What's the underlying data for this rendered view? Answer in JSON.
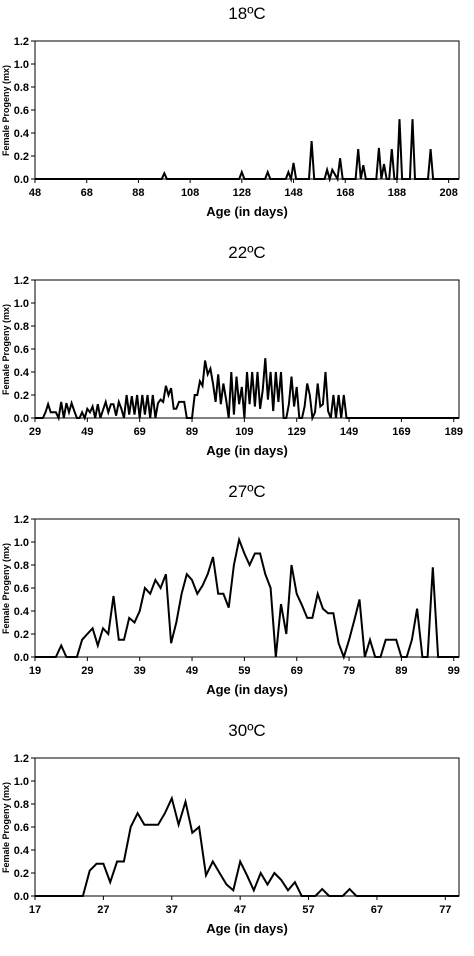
{
  "chart_data": [
    {
      "type": "line",
      "title": "18ºC",
      "xlabel": "Age (in days)",
      "ylabel": "Female Progeny (mx)",
      "xlim": [
        48,
        212
      ],
      "ylim": [
        0,
        1.2
      ],
      "xticks": [
        48,
        68,
        88,
        108,
        128,
        148,
        168,
        188,
        208
      ],
      "yticks": [
        0.0,
        0.2,
        0.4,
        0.6,
        0.8,
        1.0,
        1.2
      ],
      "grid": false,
      "legend": "none",
      "series": [
        {
          "x": [
            48,
            97,
            98,
            99,
            127,
            128,
            129,
            137,
            138,
            139,
            145,
            146,
            147,
            148,
            149,
            150,
            151,
            154,
            155,
            156,
            157,
            160,
            161,
            162,
            163,
            165,
            166,
            167,
            168,
            172,
            173,
            174,
            175,
            176,
            177,
            178,
            180,
            181,
            182,
            183,
            184,
            185,
            186,
            187,
            188,
            189,
            190,
            192,
            193,
            194,
            195,
            196,
            197,
            200,
            201,
            202,
            203,
            212
          ],
          "y": [
            0,
            0,
            0.05,
            0,
            0,
            0.06,
            0,
            0,
            0.06,
            0,
            0,
            0.06,
            0,
            0.14,
            0,
            0,
            0,
            0,
            0.33,
            0,
            0,
            0,
            0.08,
            0,
            0.08,
            0,
            0.18,
            0,
            0,
            0,
            0.26,
            0,
            0.12,
            0,
            0,
            0,
            0,
            0.27,
            0,
            0.13,
            0,
            0,
            0.26,
            0,
            0,
            0.52,
            0,
            0,
            0,
            0.52,
            0,
            0,
            0,
            0,
            0.26,
            0,
            0,
            0
          ]
        }
      ]
    },
    {
      "type": "line",
      "title": "22ºC",
      "xlabel": "Age (in days)",
      "ylabel": "Female Progeny (mx)",
      "xlim": [
        29,
        191
      ],
      "ylim": [
        0,
        1.2
      ],
      "xticks": [
        29,
        49,
        69,
        89,
        109,
        129,
        149,
        169,
        189
      ],
      "yticks": [
        0.0,
        0.2,
        0.4,
        0.6,
        0.8,
        1.0,
        1.2
      ],
      "grid": false,
      "legend": "none",
      "series": [
        {
          "x": [
            29,
            30,
            31,
            32,
            33,
            34,
            35,
            36,
            37,
            38,
            39,
            40,
            41,
            42,
            43,
            44,
            45,
            46,
            47,
            48,
            49,
            50,
            51,
            52,
            53,
            54,
            55,
            56,
            57,
            58,
            59,
            60,
            61,
            62,
            63,
            64,
            65,
            66,
            67,
            68,
            69,
            70,
            71,
            72,
            73,
            74,
            75,
            76,
            77,
            78,
            79,
            80,
            81,
            82,
            83,
            84,
            85,
            86,
            87,
            88,
            89,
            90,
            91,
            92,
            93,
            94,
            95,
            96,
            97,
            98,
            99,
            100,
            101,
            102,
            103,
            104,
            105,
            106,
            107,
            108,
            109,
            110,
            111,
            112,
            113,
            114,
            115,
            116,
            117,
            118,
            119,
            120,
            121,
            122,
            123,
            124,
            125,
            126,
            127,
            128,
            129,
            130,
            131,
            132,
            133,
            134,
            135,
            136,
            137,
            138,
            139,
            140,
            141,
            142,
            143,
            144,
            145,
            146,
            147,
            148,
            149,
            150,
            151,
            152,
            153,
            191
          ],
          "y": [
            0,
            0,
            0,
            0,
            0.05,
            0.12,
            0.05,
            0.05,
            0.05,
            0,
            0.14,
            0,
            0.13,
            0.05,
            0.13,
            0.06,
            0,
            0,
            0.05,
            0,
            0.08,
            0.05,
            0.1,
            0,
            0.12,
            0,
            0.07,
            0.14,
            0.05,
            0.12,
            0.12,
            0.02,
            0.14,
            0.08,
            0,
            0.2,
            0.03,
            0.19,
            0.03,
            0.2,
            0,
            0.2,
            0.03,
            0.2,
            0,
            0.2,
            0,
            0.13,
            0.16,
            0.14,
            0.28,
            0.2,
            0.26,
            0.08,
            0.08,
            0.14,
            0.14,
            0.14,
            0,
            0,
            0,
            0.2,
            0.2,
            0.32,
            0.28,
            0.5,
            0.38,
            0.43,
            0.3,
            0.14,
            0.38,
            0.12,
            0.3,
            0.16,
            0,
            0.4,
            0.03,
            0.36,
            0.12,
            0.27,
            0,
            0.4,
            0.12,
            0.4,
            0.1,
            0.4,
            0.08,
            0.24,
            0.52,
            0.16,
            0.4,
            0.06,
            0.4,
            0.14,
            0.4,
            0,
            0,
            0.12,
            0.36,
            0.1,
            0.27,
            0,
            0,
            0.1,
            0.3,
            0.2,
            0,
            0.05,
            0.3,
            0.1,
            0.12,
            0.4,
            0.06,
            0,
            0.2,
            0,
            0.2,
            0,
            0.2,
            0,
            0,
            0,
            0,
            0,
            0,
            0
          ]
        }
      ]
    },
    {
      "type": "line",
      "title": "27ºC",
      "xlabel": "Age (in days)",
      "ylabel": "Female Progeny (mx)",
      "xlim": [
        19,
        100
      ],
      "ylim": [
        0,
        1.2
      ],
      "xticks": [
        19,
        29,
        39,
        49,
        59,
        69,
        79,
        89,
        99
      ],
      "yticks": [
        0.0,
        0.2,
        0.4,
        0.6,
        0.8,
        1.0,
        1.2
      ],
      "grid": false,
      "legend": "none",
      "series": [
        {
          "x": [
            19,
            23,
            24,
            25,
            26,
            27,
            28,
            29,
            30,
            31,
            32,
            33,
            34,
            35,
            36,
            37,
            38,
            39,
            40,
            41,
            42,
            43,
            44,
            45,
            46,
            47,
            48,
            49,
            50,
            51,
            52,
            53,
            54,
            55,
            56,
            57,
            58,
            59,
            60,
            61,
            62,
            63,
            64,
            65,
            66,
            67,
            68,
            69,
            70,
            71,
            72,
            73,
            74,
            75,
            76,
            77,
            78,
            79,
            80,
            81,
            82,
            83,
            84,
            85,
            86,
            87,
            88,
            89,
            90,
            91,
            92,
            93,
            94,
            95,
            96,
            97,
            100
          ],
          "y": [
            0,
            0,
            0.1,
            0,
            0,
            0,
            0.15,
            0.2,
            0.25,
            0.1,
            0.25,
            0.2,
            0.53,
            0.15,
            0.15,
            0.34,
            0.3,
            0.4,
            0.6,
            0.55,
            0.67,
            0.6,
            0.72,
            0.12,
            0.3,
            0.55,
            0.72,
            0.67,
            0.55,
            0.62,
            0.72,
            0.87,
            0.55,
            0.55,
            0.43,
            0.8,
            1.02,
            0.9,
            0.8,
            0.9,
            0.9,
            0.72,
            0.6,
            0,
            0.46,
            0.2,
            0.8,
            0.55,
            0.45,
            0.34,
            0.34,
            0.55,
            0.42,
            0.38,
            0.38,
            0.12,
            0,
            0.15,
            0.32,
            0.5,
            0,
            0.15,
            0,
            0,
            0.15,
            0.15,
            0.15,
            0,
            0,
            0.15,
            0.42,
            0,
            0,
            0.78,
            0,
            0,
            0
          ]
        }
      ]
    },
    {
      "type": "line",
      "title": "30ºC",
      "xlabel": "Age (in days)",
      "ylabel": "Female Progeny (mx)",
      "xlim": [
        17,
        79
      ],
      "ylim": [
        0,
        1.2
      ],
      "xticks": [
        17,
        27,
        37,
        47,
        57,
        67,
        77
      ],
      "yticks": [
        0.0,
        0.2,
        0.4,
        0.6,
        0.8,
        1.0,
        1.2
      ],
      "grid": false,
      "legend": "none",
      "series": [
        {
          "x": [
            17,
            24,
            25,
            26,
            27,
            28,
            29,
            30,
            31,
            32,
            33,
            34,
            35,
            36,
            37,
            38,
            39,
            40,
            41,
            42,
            43,
            44,
            45,
            46,
            47,
            48,
            49,
            50,
            51,
            52,
            53,
            54,
            55,
            56,
            57,
            58,
            59,
            60,
            61,
            62,
            63,
            64,
            79
          ],
          "y": [
            0,
            0,
            0.22,
            0.28,
            0.28,
            0.12,
            0.3,
            0.3,
            0.6,
            0.72,
            0.62,
            0.62,
            0.62,
            0.72,
            0.85,
            0.62,
            0.82,
            0.55,
            0.6,
            0.18,
            0.3,
            0.2,
            0.1,
            0.05,
            0.3,
            0.18,
            0.05,
            0.2,
            0.1,
            0.2,
            0.14,
            0.05,
            0.12,
            0,
            0,
            0,
            0.06,
            0,
            0,
            0,
            0.06,
            0,
            0
          ]
        }
      ]
    }
  ]
}
